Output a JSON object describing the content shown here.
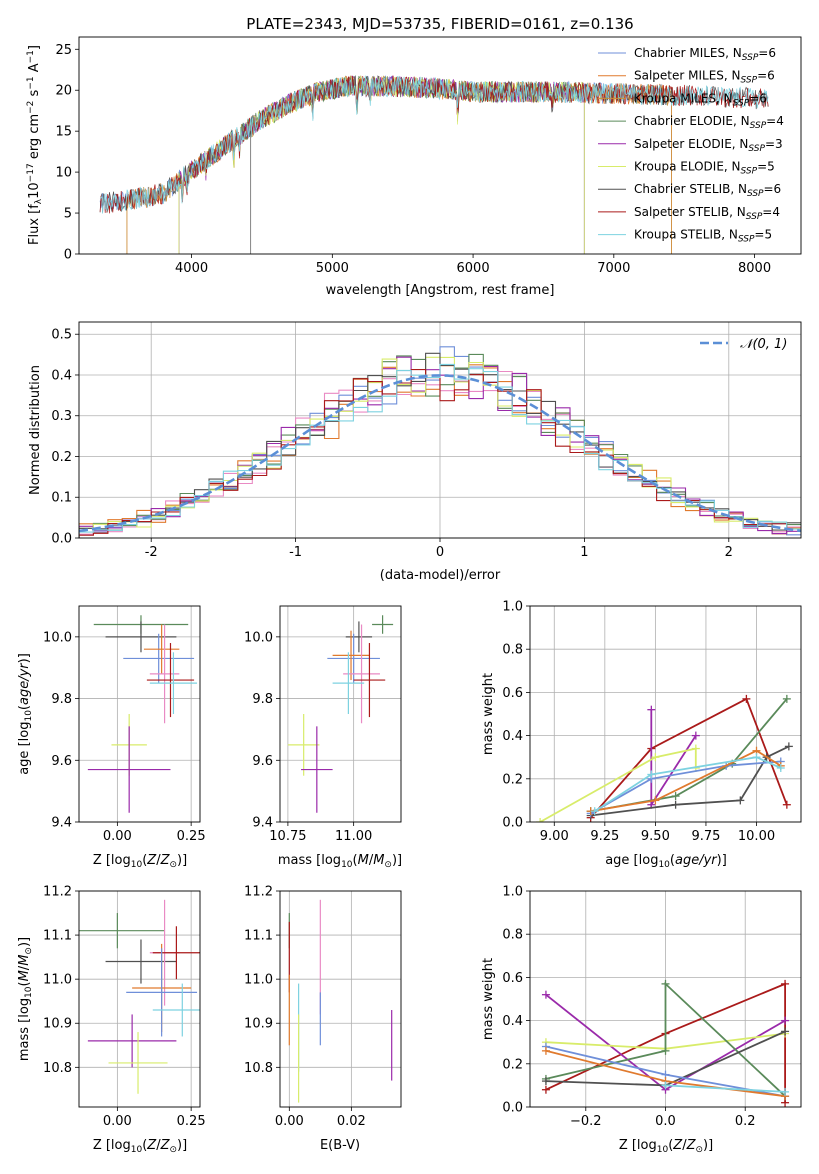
{
  "colors": {
    "chab_miles": "#6f8fd9",
    "salp_miles": "#e07a2e",
    "krou_miles": "#c8903a",
    "chab_elodie": "#5a8a5a",
    "salp_elodie": "#9a2aaa",
    "krou_elodie": "#d8ec6a",
    "chab_stelib": "#505050",
    "salp_stelib": "#aa1a1a",
    "krou_stelib": "#7dd2e0",
    "pink": "#e98ac4",
    "gaussian": "#5b8fd6"
  },
  "chart_data": [
    {
      "id": "spectrum",
      "type": "line",
      "title": "PLATE=2343, MJD=53735, FIBERID=0161, z=0.136",
      "xlabel": "wavelength [Angstrom, rest frame]",
      "ylabel": "Flux [fλ10⁻¹⁷ erg cm⁻² s⁻¹ A⁻¹]",
      "xlim": [
        3200,
        8330
      ],
      "ylim": [
        0,
        26.5
      ],
      "xticks": [
        4000,
        5000,
        6000,
        7000,
        8000
      ],
      "yticks": [
        0,
        5,
        10,
        15,
        20,
        25
      ],
      "grid": false,
      "legend_position": "top-right",
      "continuum_anchors": [
        [
          3350,
          6.1
        ],
        [
          3600,
          6.7
        ],
        [
          3800,
          7.4
        ],
        [
          3950,
          9.5
        ],
        [
          4100,
          11.5
        ],
        [
          4300,
          14.0
        ],
        [
          4500,
          16.5
        ],
        [
          4700,
          18.4
        ],
        [
          4900,
          19.8
        ],
        [
          5100,
          20.5
        ],
        [
          5400,
          20.5
        ],
        [
          5700,
          20.3
        ],
        [
          6000,
          19.8
        ],
        [
          6400,
          19.8
        ],
        [
          6800,
          19.7
        ],
        [
          7200,
          19.5
        ],
        [
          7600,
          19.3
        ],
        [
          8000,
          19.0
        ],
        [
          8100,
          18.8
        ]
      ],
      "series": [
        {
          "name": "Chabrier MILES, N_SSP=6",
          "color_key": "chab_miles",
          "range": [
            3350,
            7400
          ]
        },
        {
          "name": "Salpeter MILES, N_SSP=6",
          "color_key": "salp_miles",
          "range": [
            3540,
            7410
          ]
        },
        {
          "name": "Kroupa MILES, N_SSP=6",
          "color_key": "krou_miles",
          "range": [
            3540,
            7410
          ]
        },
        {
          "name": "Chabrier ELODIE, N_SSP=4",
          "color_key": "chab_elodie",
          "range": [
            3910,
            6790
          ]
        },
        {
          "name": "Salpeter ELODIE, N_SSP=3",
          "color_key": "salp_elodie",
          "range": [
            3910,
            6790
          ]
        },
        {
          "name": "Kroupa ELODIE, N_SSP=5",
          "color_key": "krou_elodie",
          "range": [
            3910,
            6790
          ]
        },
        {
          "name": "Chabrier STELIB, N_SSP=6",
          "color_key": "chab_stelib",
          "range": [
            3350,
            8100
          ]
        },
        {
          "name": "Salpeter STELIB, N_SSP=4",
          "color_key": "salp_stelib",
          "range": [
            3350,
            8100
          ]
        },
        {
          "name": "Kroupa STELIB, N_SSP=5",
          "color_key": "krou_stelib",
          "range": [
            3350,
            8100
          ]
        }
      ]
    },
    {
      "id": "residual_hist",
      "type": "histogram",
      "xlabel": "(data-model)/error",
      "ylabel": "Normed distribution",
      "xlim": [
        -2.5,
        2.5
      ],
      "ylim": [
        0,
        0.53
      ],
      "xticks": [
        -2,
        -1,
        0,
        1,
        2
      ],
      "yticks": [
        0.0,
        0.1,
        0.2,
        0.3,
        0.4,
        0.5
      ],
      "grid": true,
      "bin_width": 0.1,
      "legend_position": "top-right",
      "reference_curve": {
        "name": "𝒩(0, 1)",
        "style": "dashed",
        "color_key": "gaussian",
        "mean": 0,
        "sigma": 1
      },
      "series_colors": [
        "chab_miles",
        "salp_miles",
        "pink",
        "chab_elodie",
        "salp_elodie",
        "krou_elodie",
        "chab_stelib",
        "salp_stelib",
        "krou_stelib"
      ]
    },
    {
      "id": "age_vs_Z",
      "type": "errorbar",
      "xlabel": "Z [log₁₀(Z/Z⊙)]",
      "ylabel": "age  [log₁₀(age/yr)]",
      "xlim": [
        -0.13,
        0.28
      ],
      "ylim": [
        9.4,
        10.1
      ],
      "xticks": [
        0.0,
        0.25
      ],
      "xticklabels": [
        "0.00",
        "0.25"
      ],
      "yticks": [
        9.4,
        9.6,
        9.8,
        10.0
      ],
      "grid": true,
      "points": [
        {
          "x": 0.08,
          "xerr": 0.16,
          "y": 10.04,
          "yerr": 0.03,
          "c": "chab_elodie"
        },
        {
          "x": 0.08,
          "xerr": 0.12,
          "y": 10.0,
          "yerr": 0.05,
          "c": "chab_stelib"
        },
        {
          "x": 0.14,
          "xerr": 0.12,
          "y": 9.93,
          "yerr": 0.08,
          "c": "chab_miles"
        },
        {
          "x": 0.15,
          "xerr": 0.06,
          "y": 9.96,
          "yerr": 0.08,
          "c": "salp_miles"
        },
        {
          "x": 0.16,
          "xerr": 0.05,
          "y": 9.88,
          "yerr": 0.16,
          "c": "pink"
        },
        {
          "x": 0.18,
          "xerr": 0.08,
          "y": 9.86,
          "yerr": 0.12,
          "c": "salp_stelib"
        },
        {
          "x": 0.19,
          "xerr": 0.08,
          "y": 9.85,
          "yerr": 0.1,
          "c": "krou_stelib"
        },
        {
          "x": 0.04,
          "xerr": 0.06,
          "y": 9.65,
          "yerr": 0.1,
          "c": "krou_elodie"
        },
        {
          "x": 0.04,
          "xerr": 0.14,
          "y": 9.57,
          "yerr": 0.14,
          "c": "salp_elodie"
        }
      ]
    },
    {
      "id": "age_vs_mass",
      "type": "errorbar",
      "xlabel": "mass [log₁₀(M/M⊙)]",
      "ylabel": "",
      "xlim": [
        10.72,
        11.18
      ],
      "ylim": [
        9.4,
        10.1
      ],
      "xticks": [
        10.75,
        11.0
      ],
      "xticklabels": [
        "10.75",
        "11.00"
      ],
      "yticks": [
        9.4,
        9.6,
        9.8,
        10.0
      ],
      "grid": true,
      "points": [
        {
          "x": 11.11,
          "xerr": 0.04,
          "y": 10.04,
          "yerr": 0.03,
          "c": "chab_elodie"
        },
        {
          "x": 11.02,
          "xerr": 0.05,
          "y": 10.0,
          "yerr": 0.05,
          "c": "chab_stelib"
        },
        {
          "x": 11.0,
          "xerr": 0.1,
          "y": 9.93,
          "yerr": 0.08,
          "c": "chab_miles"
        },
        {
          "x": 10.99,
          "xerr": 0.07,
          "y": 9.94,
          "yerr": 0.08,
          "c": "salp_miles"
        },
        {
          "x": 11.03,
          "xerr": 0.07,
          "y": 9.88,
          "yerr": 0.16,
          "c": "pink"
        },
        {
          "x": 11.06,
          "xerr": 0.06,
          "y": 9.86,
          "yerr": 0.12,
          "c": "salp_stelib"
        },
        {
          "x": 10.98,
          "xerr": 0.06,
          "y": 9.85,
          "yerr": 0.1,
          "c": "krou_stelib"
        },
        {
          "x": 10.81,
          "xerr": 0.06,
          "y": 9.65,
          "yerr": 0.1,
          "c": "krou_elodie"
        },
        {
          "x": 10.86,
          "xerr": 0.06,
          "y": 9.57,
          "yerr": 0.14,
          "c": "salp_elodie"
        }
      ]
    },
    {
      "id": "mass_weight_vs_age",
      "type": "line",
      "xlabel": "age  [log₁₀(age/yr)]",
      "ylabel": "mass weight",
      "xlim": [
        8.88,
        10.22
      ],
      "ylim": [
        0,
        1
      ],
      "xticks": [
        9.0,
        9.25,
        9.5,
        9.75,
        10.0
      ],
      "xticklabels": [
        "9.00",
        "9.25",
        "9.50",
        "9.75",
        "10.00"
      ],
      "yticks": [
        0.0,
        0.2,
        0.4,
        0.6,
        0.8,
        1.0
      ],
      "grid": true,
      "series": [
        {
          "c": "salp_stelib",
          "points": [
            [
              9.18,
              0.02
            ],
            [
              9.48,
              0.34
            ],
            [
              9.95,
              0.57
            ],
            [
              10.15,
              0.08
            ]
          ]
        },
        {
          "c": "salp_elodie",
          "points": [
            [
              9.48,
              0.52
            ],
            [
              9.48,
              0.08
            ],
            [
              9.7,
              0.4
            ]
          ]
        },
        {
          "c": "krou_elodie",
          "points": [
            [
              8.93,
              0.0
            ],
            [
              9.5,
              0.3
            ],
            [
              9.7,
              0.34
            ],
            [
              9.7,
              0.25
            ]
          ]
        },
        {
          "c": "chab_elodie",
          "points": [
            [
              9.18,
              0.05
            ],
            [
              9.6,
              0.12
            ],
            [
              9.88,
              0.27
            ],
            [
              10.15,
              0.57
            ]
          ]
        },
        {
          "c": "chab_stelib",
          "points": [
            [
              9.18,
              0.03
            ],
            [
              9.6,
              0.08
            ],
            [
              9.92,
              0.1
            ],
            [
              10.05,
              0.3
            ],
            [
              10.16,
              0.35
            ]
          ]
        },
        {
          "c": "chab_miles",
          "points": [
            [
              9.18,
              0.04
            ],
            [
              9.48,
              0.2
            ],
            [
              9.85,
              0.26
            ],
            [
              10.12,
              0.28
            ]
          ]
        },
        {
          "c": "salp_miles",
          "points": [
            [
              9.18,
              0.05
            ],
            [
              9.5,
              0.1
            ],
            [
              10.0,
              0.33
            ],
            [
              10.12,
              0.26
            ]
          ]
        },
        {
          "c": "krou_stelib",
          "points": [
            [
              9.2,
              0.05
            ],
            [
              9.48,
              0.22
            ],
            [
              10.0,
              0.3
            ],
            [
              10.12,
              0.25
            ]
          ]
        }
      ]
    },
    {
      "id": "mass_vs_Z",
      "type": "errorbar",
      "xlabel": "Z [log₁₀(Z/Z⊙)]",
      "ylabel": "mass [log₁₀(M/M⊙)]",
      "xlim": [
        -0.13,
        0.28
      ],
      "ylim": [
        10.71,
        11.2
      ],
      "xticks": [
        0.0,
        0.25
      ],
      "xticklabels": [
        "0.00",
        "0.25"
      ],
      "yticks": [
        10.8,
        10.9,
        11.0,
        11.1,
        11.2
      ],
      "grid": true,
      "points": [
        {
          "x": 0.0,
          "xerr": 0.16,
          "y": 11.11,
          "yerr": 0.04,
          "c": "chab_elodie"
        },
        {
          "x": 0.08,
          "xerr": 0.12,
          "y": 11.04,
          "yerr": 0.05,
          "c": "chab_stelib"
        },
        {
          "x": 0.16,
          "xerr": 0.05,
          "y": 11.06,
          "yerr": 0.12,
          "c": "pink"
        },
        {
          "x": 0.2,
          "xerr": 0.08,
          "y": 11.06,
          "yerr": 0.06,
          "c": "salp_stelib"
        },
        {
          "x": 0.15,
          "xerr": 0.1,
          "y": 10.98,
          "yerr": 0.1,
          "c": "salp_miles"
        },
        {
          "x": 0.15,
          "xerr": 0.12,
          "y": 10.97,
          "yerr": 0.1,
          "c": "chab_miles"
        },
        {
          "x": 0.22,
          "xerr": 0.1,
          "y": 10.93,
          "yerr": 0.06,
          "c": "krou_stelib"
        },
        {
          "x": 0.05,
          "xerr": 0.15,
          "y": 10.86,
          "yerr": 0.06,
          "c": "salp_elodie"
        },
        {
          "x": 0.07,
          "xerr": 0.1,
          "y": 10.81,
          "yerr": 0.07,
          "c": "krou_elodie"
        }
      ]
    },
    {
      "id": "mass_vs_ebv",
      "type": "errorbar",
      "xlabel": "E(B-V)",
      "ylabel": "",
      "xlim": [
        -0.003,
        0.036
      ],
      "ylim": [
        10.71,
        11.2
      ],
      "xticks": [
        0.0,
        0.02
      ],
      "xticklabels": [
        "0.00",
        "0.02"
      ],
      "yticks": [
        10.8,
        10.9,
        11.0,
        11.1,
        11.2
      ],
      "grid": true,
      "points": [
        {
          "x": 0.0,
          "y": 11.11,
          "yerr": 0.04,
          "c": "chab_elodie"
        },
        {
          "x": 0.0,
          "y": 11.05,
          "yerr": 0.08,
          "c": "salp_stelib"
        },
        {
          "x": 0.0,
          "y": 10.93,
          "yerr": 0.08,
          "c": "salp_miles"
        },
        {
          "x": 0.003,
          "y": 10.89,
          "yerr": 0.1,
          "c": "krou_stelib"
        },
        {
          "x": 0.003,
          "y": 10.82,
          "yerr": 0.1,
          "c": "krou_elodie"
        },
        {
          "x": 0.01,
          "y": 11.05,
          "yerr": 0.13,
          "c": "pink"
        },
        {
          "x": 0.01,
          "y": 10.91,
          "yerr": 0.06,
          "c": "chab_miles"
        },
        {
          "x": 0.033,
          "y": 10.85,
          "yerr": 0.08,
          "c": "salp_elodie"
        }
      ]
    },
    {
      "id": "mass_weight_vs_Z",
      "type": "line",
      "xlabel": "Z [log₁₀(Z/Z⊙)]",
      "ylabel": "mass weight",
      "xlim": [
        -0.34,
        0.34
      ],
      "ylim": [
        0,
        1
      ],
      "xticks": [
        -0.2,
        0.0,
        0.2
      ],
      "xticklabels": [
        "−0.2",
        "0.0",
        "0.2"
      ],
      "yticks": [
        0.0,
        0.2,
        0.4,
        0.6,
        0.8,
        1.0
      ],
      "grid": true,
      "series": [
        {
          "c": "salp_stelib",
          "points": [
            [
              -0.3,
              0.08
            ],
            [
              0.0,
              0.34
            ],
            [
              0.3,
              0.57
            ],
            [
              0.3,
              0.02
            ]
          ]
        },
        {
          "c": "salp_elodie",
          "points": [
            [
              -0.3,
              0.52
            ],
            [
              0.0,
              0.08
            ],
            [
              0.3,
              0.4
            ]
          ]
        },
        {
          "c": "krou_elodie",
          "points": [
            [
              -0.3,
              0.3
            ],
            [
              0.0,
              0.27
            ],
            [
              0.3,
              0.34
            ]
          ]
        },
        {
          "c": "chab_elodie",
          "points": [
            [
              -0.3,
              0.13
            ],
            [
              0.0,
              0.26
            ],
            [
              0.0,
              0.57
            ],
            [
              0.3,
              0.05
            ]
          ]
        },
        {
          "c": "chab_stelib",
          "points": [
            [
              -0.3,
              0.12
            ],
            [
              0.0,
              0.1
            ],
            [
              0.3,
              0.35
            ]
          ]
        },
        {
          "c": "chab_miles",
          "points": [
            [
              -0.3,
              0.28
            ],
            [
              0.0,
              0.15
            ],
            [
              0.3,
              0.05
            ]
          ]
        },
        {
          "c": "salp_miles",
          "points": [
            [
              -0.3,
              0.26
            ],
            [
              0.0,
              0.12
            ],
            [
              0.3,
              0.05
            ]
          ]
        },
        {
          "c": "krou_stelib",
          "points": [
            [
              0.0,
              0.1
            ],
            [
              0.3,
              0.07
            ]
          ]
        }
      ]
    }
  ]
}
